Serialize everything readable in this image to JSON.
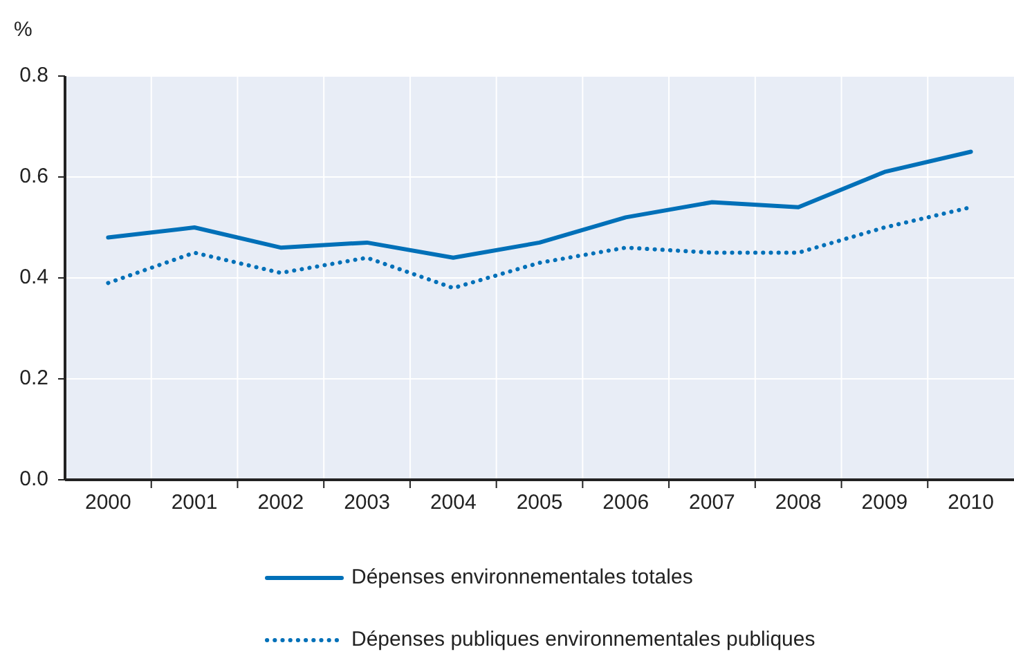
{
  "chart_data": {
    "type": "line",
    "ylabel": "%",
    "categories": [
      "2000",
      "2001",
      "2002",
      "2003",
      "2004",
      "2005",
      "2006",
      "2007",
      "2008",
      "2009",
      "2010"
    ],
    "series": [
      {
        "name": "Dépenses environnementales totales",
        "color": "#0070b8",
        "line_style": "solid",
        "values": [
          0.48,
          0.5,
          0.46,
          0.47,
          0.44,
          0.47,
          0.52,
          0.55,
          0.54,
          0.61,
          0.65
        ]
      },
      {
        "name": "Dépenses publiques environnementales publiques",
        "color": "#0070b8",
        "line_style": "dotted",
        "values": [
          0.39,
          0.45,
          0.41,
          0.44,
          0.38,
          0.43,
          0.46,
          0.45,
          0.45,
          0.5,
          0.54
        ]
      }
    ],
    "ylim": [
      0,
      0.8
    ],
    "yticks": [
      {
        "value": 0,
        "label": "0.0"
      },
      0.2,
      0.4,
      0.6,
      0.8
    ],
    "grid": true,
    "legend": "bottom",
    "marker": "none"
  }
}
